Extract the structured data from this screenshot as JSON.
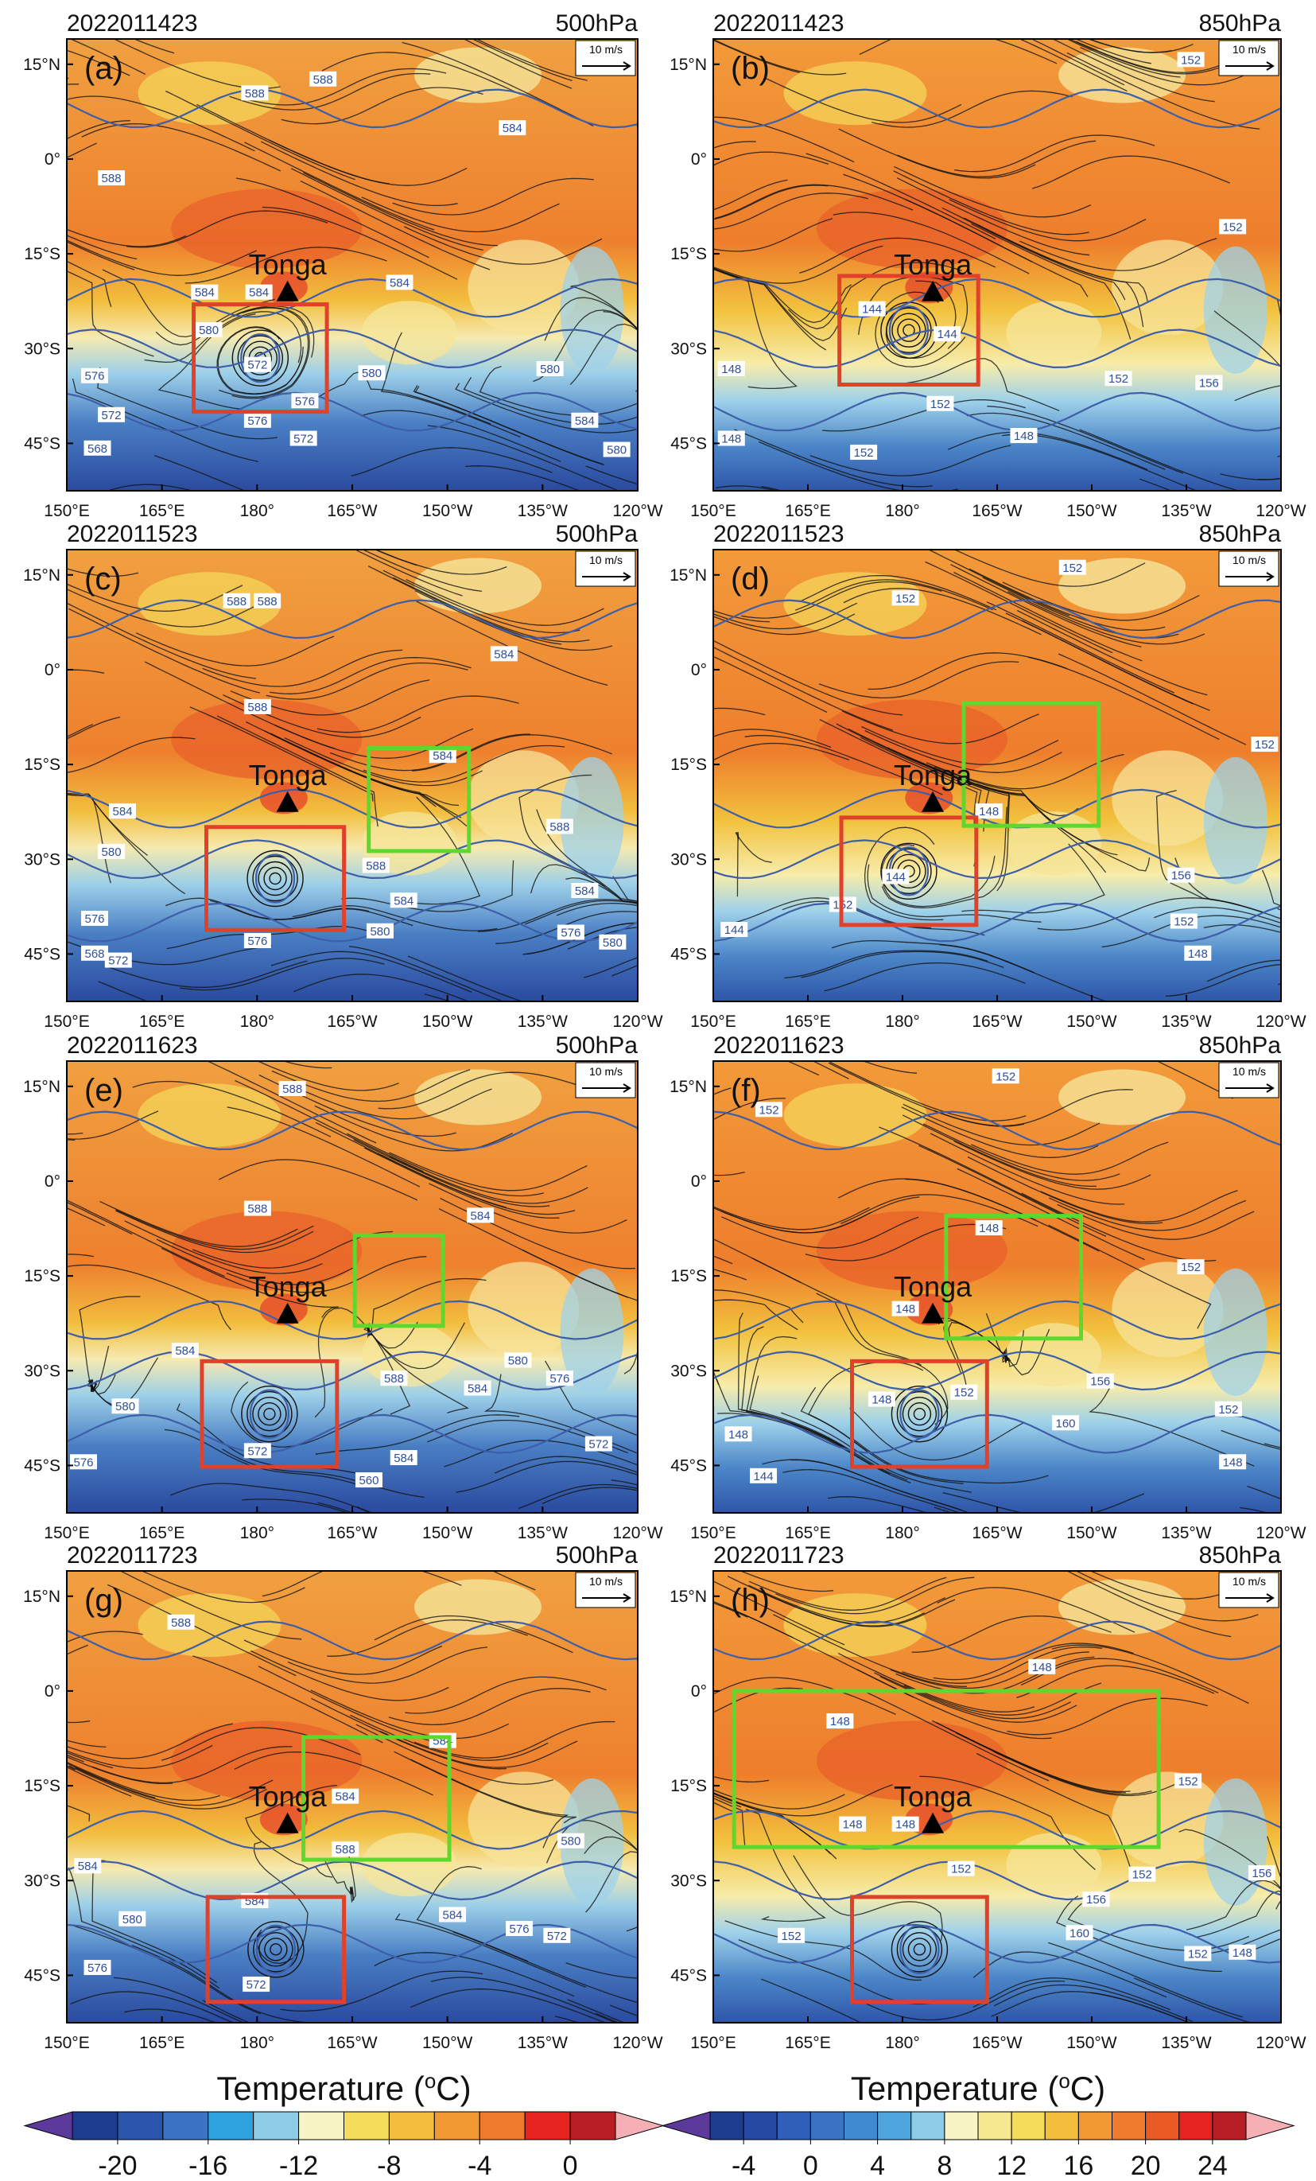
{
  "panels": [
    {
      "label": "(a)",
      "time": "2022011423",
      "level": "500hPa",
      "annotation": "Tonga",
      "contour_labels": [
        "588",
        "588",
        "584",
        "588",
        "584",
        "584",
        "584",
        "580",
        "576",
        "572",
        "580",
        "576",
        "576",
        "572",
        "572",
        "568",
        "584",
        "580",
        "580"
      ]
    },
    {
      "label": "(b)",
      "time": "2022011423",
      "level": "850hPa",
      "annotation": "Tonga",
      "contour_labels": [
        "152",
        "152",
        "144",
        "144",
        "148",
        "152",
        "148",
        "152",
        "148",
        "152",
        "156"
      ]
    },
    {
      "label": "(c)",
      "time": "2022011523",
      "level": "500hPa",
      "annotation": "Tonga",
      "contour_labels": [
        "588",
        "588",
        "584",
        "588",
        "584",
        "584",
        "580",
        "588",
        "588",
        "584",
        "576",
        "572",
        "568",
        "576",
        "580",
        "584",
        "576",
        "580"
      ]
    },
    {
      "label": "(d)",
      "time": "2022011523",
      "level": "850hPa",
      "annotation": "Tonga",
      "contour_labels": [
        "152",
        "152",
        "152",
        "148",
        "144",
        "156",
        "152",
        "148",
        "144",
        "152"
      ]
    },
    {
      "label": "(e)",
      "time": "2022011623",
      "level": "500hPa",
      "annotation": "Tonga",
      "contour_labels": [
        "588",
        "584",
        "588",
        "584",
        "580",
        "576",
        "572",
        "588",
        "584",
        "560",
        "584",
        "580",
        "576",
        "572"
      ]
    },
    {
      "label": "(f)",
      "time": "2022011623",
      "level": "850hPa",
      "annotation": "Tonga",
      "contour_labels": [
        "152",
        "152",
        "148",
        "148",
        "152",
        "148",
        "152",
        "156",
        "160",
        "152",
        "148",
        "144",
        "148"
      ]
    },
    {
      "label": "(g)",
      "time": "2022011723",
      "level": "500hPa",
      "annotation": "Tonga",
      "contour_labels": [
        "588",
        "584",
        "584",
        "588",
        "584",
        "584",
        "580",
        "576",
        "572",
        "580",
        "584",
        "576",
        "572"
      ]
    },
    {
      "label": "(h)",
      "time": "2022011723",
      "level": "850hPa",
      "annotation": "Tonga",
      "contour_labels": [
        "148",
        "148",
        "152",
        "148",
        "148",
        "152",
        "152",
        "156",
        "152",
        "160",
        "152",
        "156",
        "148"
      ]
    }
  ],
  "reference_vector": "10 m/s",
  "lon_range": [
    150,
    240
  ],
  "lat_range": [
    -52.5,
    19
  ],
  "lon_ticks": [
    {
      "value": 150,
      "label": "150°E"
    },
    {
      "value": 165,
      "label": "165°E"
    },
    {
      "value": 180,
      "label": "180°"
    },
    {
      "value": 195,
      "label": "165°W"
    },
    {
      "value": 210,
      "label": "150°W"
    },
    {
      "value": 225,
      "label": "135°W"
    },
    {
      "value": 240,
      "label": "120°W"
    }
  ],
  "lat_ticks": [
    {
      "value": 15,
      "label": "15°N"
    },
    {
      "value": 0,
      "label": "0°"
    },
    {
      "value": -15,
      "label": "15°S"
    },
    {
      "value": -30,
      "label": "30°S"
    },
    {
      "value": -45,
      "label": "45°S"
    }
  ],
  "colorbars": [
    {
      "title": [
        "Temperature (",
        "o",
        "C)"
      ],
      "range": [
        -22,
        2
      ],
      "ticks": [
        -20,
        -16,
        -12,
        -8,
        -4,
        0
      ],
      "under_color": "#5b3a9c",
      "over_color": "#f5b0b5",
      "colors": [
        "#1d3c8f",
        "#2a55ac",
        "#3a74c2",
        "#2fa3df",
        "#8ecbe6",
        "#f8f4c6",
        "#f3dd5a",
        "#f2be3b",
        "#f19a33",
        "#ee7a2e",
        "#e7231f",
        "#b81f24"
      ]
    },
    {
      "title": [
        "Temperature (",
        "o",
        "C)"
      ],
      "range": [
        -6,
        26
      ],
      "ticks": [
        -4,
        0,
        4,
        8,
        12,
        16,
        20,
        24
      ],
      "under_color": "#5b3a9c",
      "over_color": "#f5b0b5",
      "colors": [
        "#1d3c8f",
        "#244aa3",
        "#2f5fb8",
        "#3a74c2",
        "#3f8ad0",
        "#4fa6de",
        "#8ecbe6",
        "#f8f4c6",
        "#f6e890",
        "#f3dd5a",
        "#f2be3b",
        "#f19a33",
        "#ee7a2e",
        "#ea5a25",
        "#e7231f",
        "#b81f24"
      ]
    }
  ]
}
